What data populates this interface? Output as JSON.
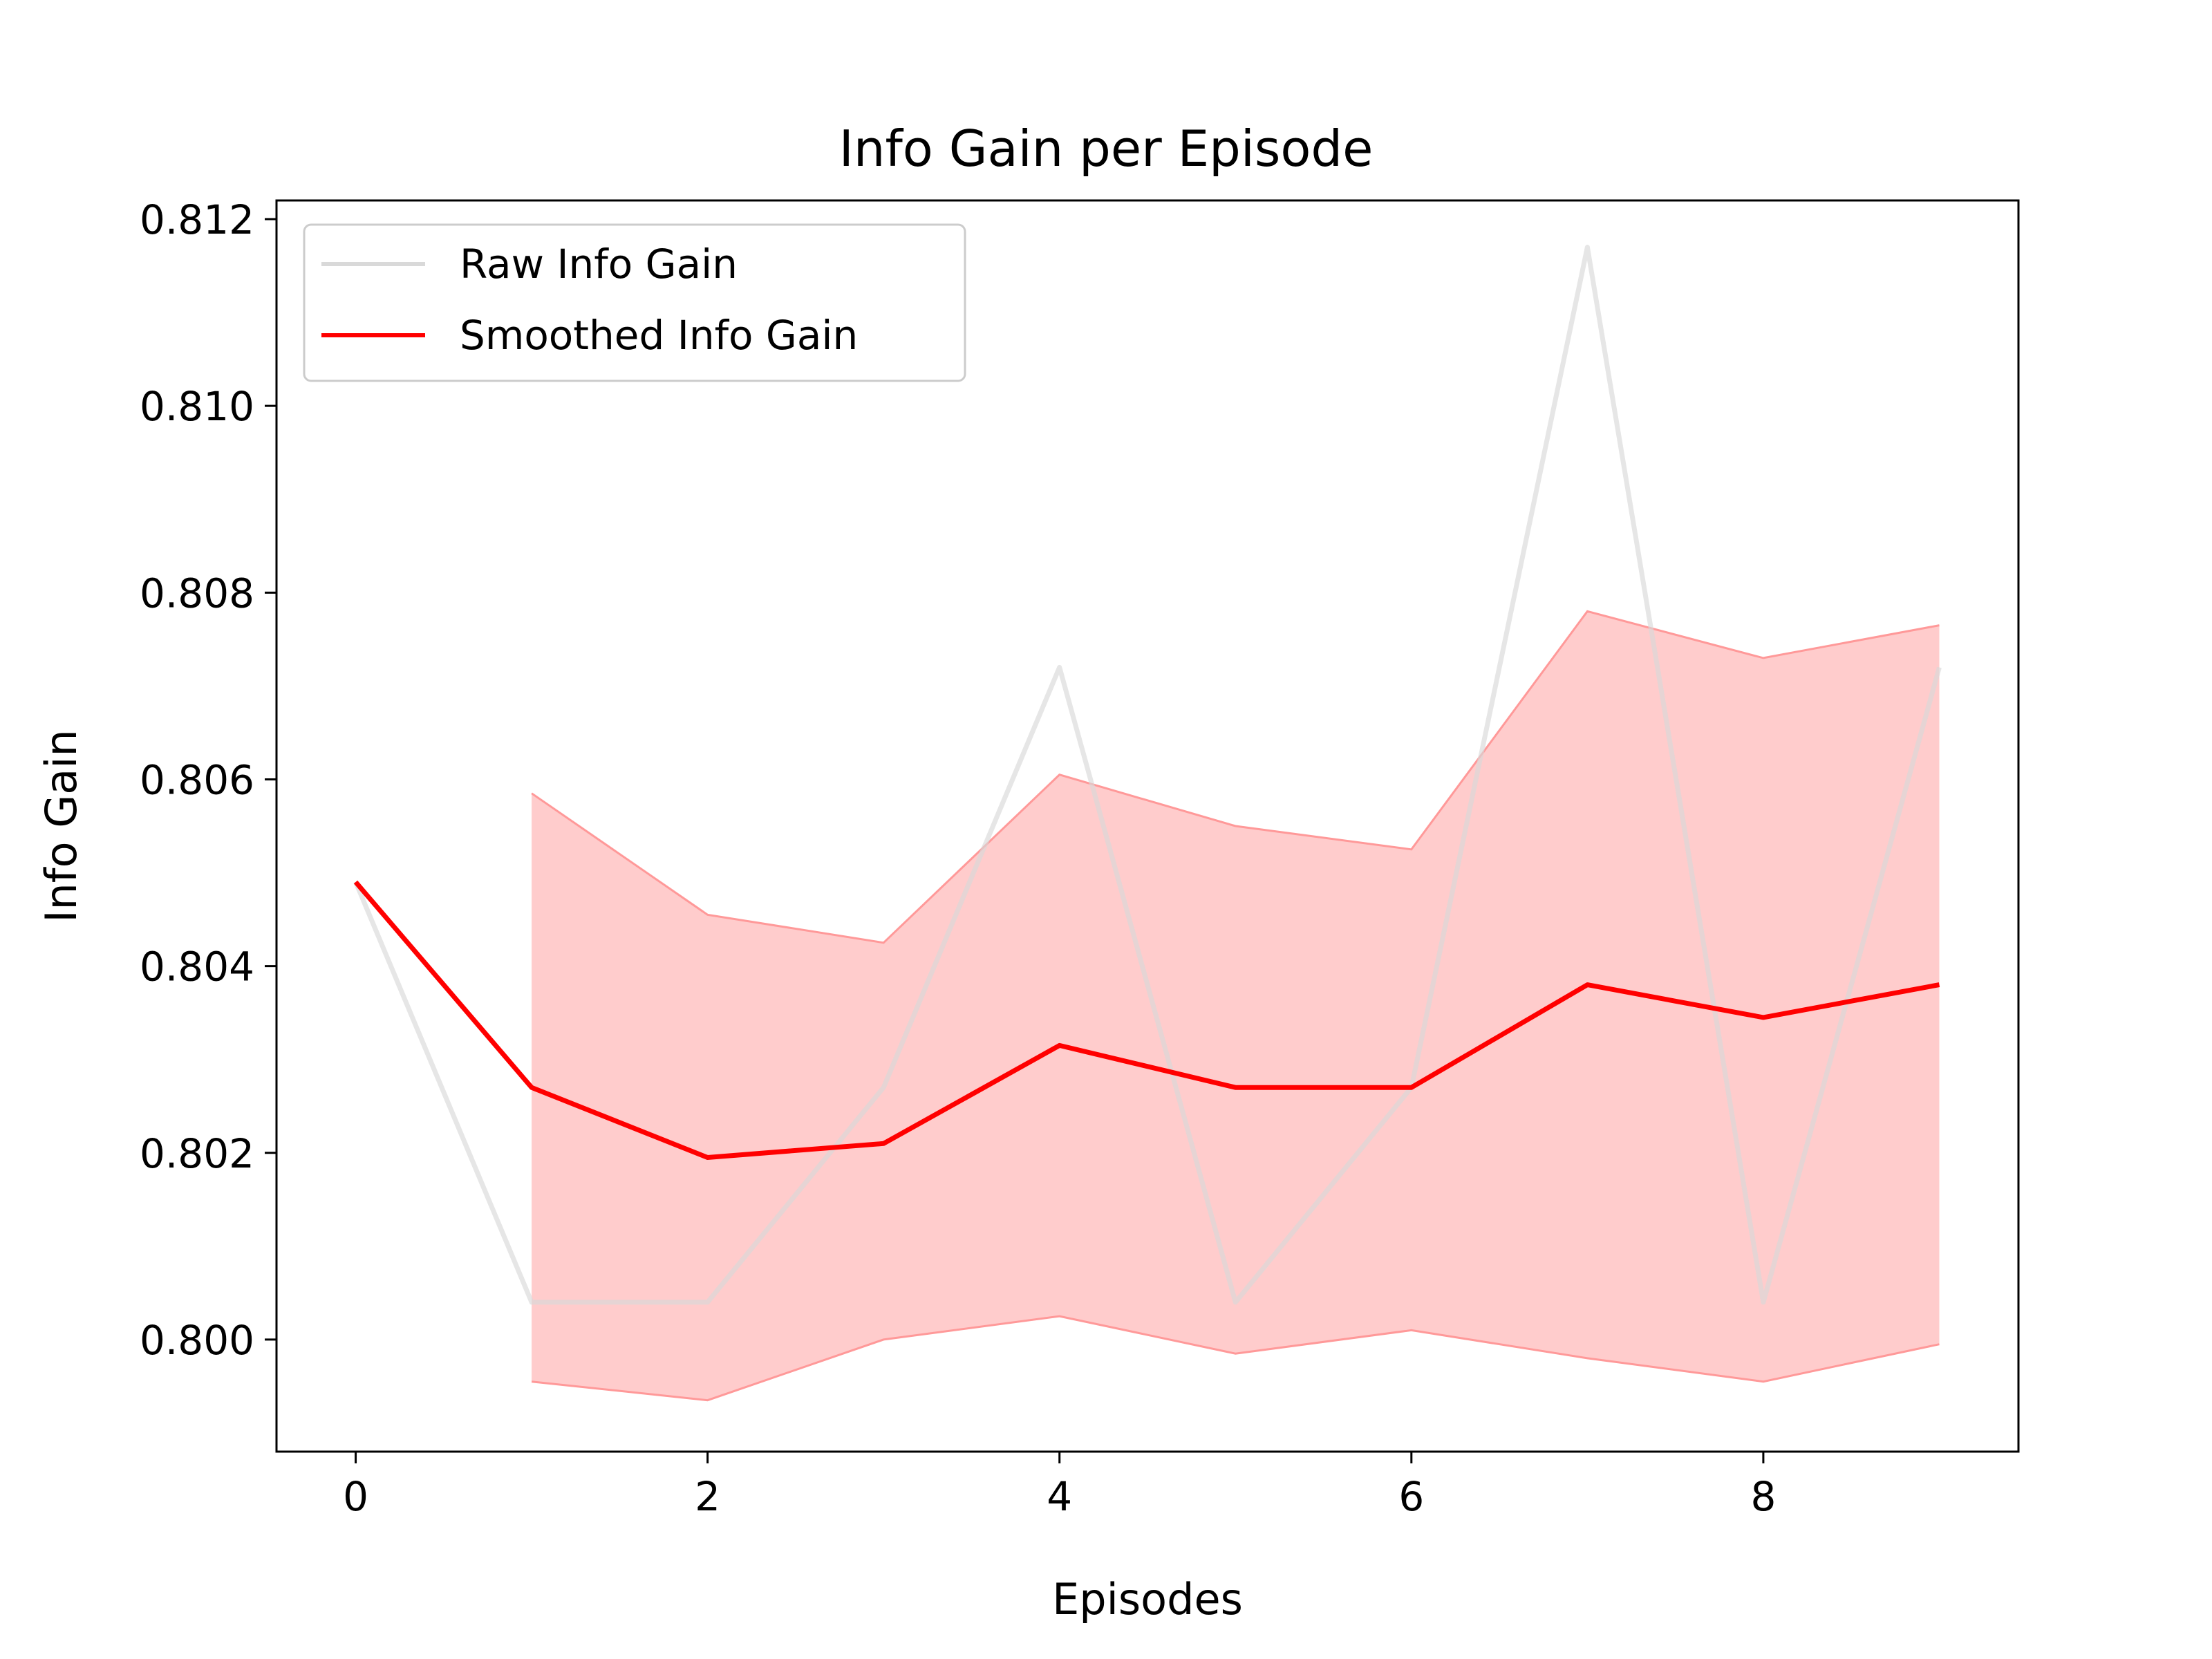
{
  "chart_data": {
    "type": "line",
    "title": "Info Gain per Episode",
    "xlabel": "Episodes",
    "ylabel": "Info Gain",
    "xlim": [
      -0.45,
      9.45
    ],
    "ylim": [
      0.7988,
      0.8122
    ],
    "x_ticks": [
      0,
      2,
      4,
      6,
      8
    ],
    "x_tick_labels": [
      "0",
      "2",
      "4",
      "6",
      "8"
    ],
    "y_ticks": [
      0.8,
      0.802,
      0.804,
      0.806,
      0.808,
      0.81,
      0.812
    ],
    "y_tick_labels": [
      "0.800",
      "0.802",
      "0.804",
      "0.806",
      "0.808",
      "0.810",
      "0.812"
    ],
    "grid": false,
    "legend_position": "upper-left",
    "x": [
      0,
      1,
      2,
      3,
      4,
      5,
      6,
      7,
      8,
      9
    ],
    "series": [
      {
        "name": "Raw Info Gain",
        "color": "#d9d9d9",
        "values": [
          0.8049,
          0.8004,
          0.8004,
          0.8027,
          0.8072,
          0.8004,
          0.8027,
          0.8117,
          0.8004,
          0.8072
        ]
      },
      {
        "name": "Smoothed Info Gain",
        "color": "#ff0000",
        "values": [
          0.8049,
          0.8027,
          0.80195,
          0.8021,
          0.80315,
          0.8027,
          0.8027,
          0.8038,
          0.80345,
          0.8038
        ]
      }
    ],
    "band": {
      "color": "#ff9999",
      "x": [
        1,
        2,
        3,
        4,
        5,
        6,
        7,
        8,
        9
      ],
      "upper": [
        0.80585,
        0.80455,
        0.80425,
        0.80605,
        0.8055,
        0.80525,
        0.8078,
        0.8073,
        0.80765
      ],
      "lower": [
        0.79955,
        0.79935,
        0.8,
        0.80025,
        0.79985,
        0.8001,
        0.7998,
        0.79955,
        0.79995
      ]
    }
  }
}
